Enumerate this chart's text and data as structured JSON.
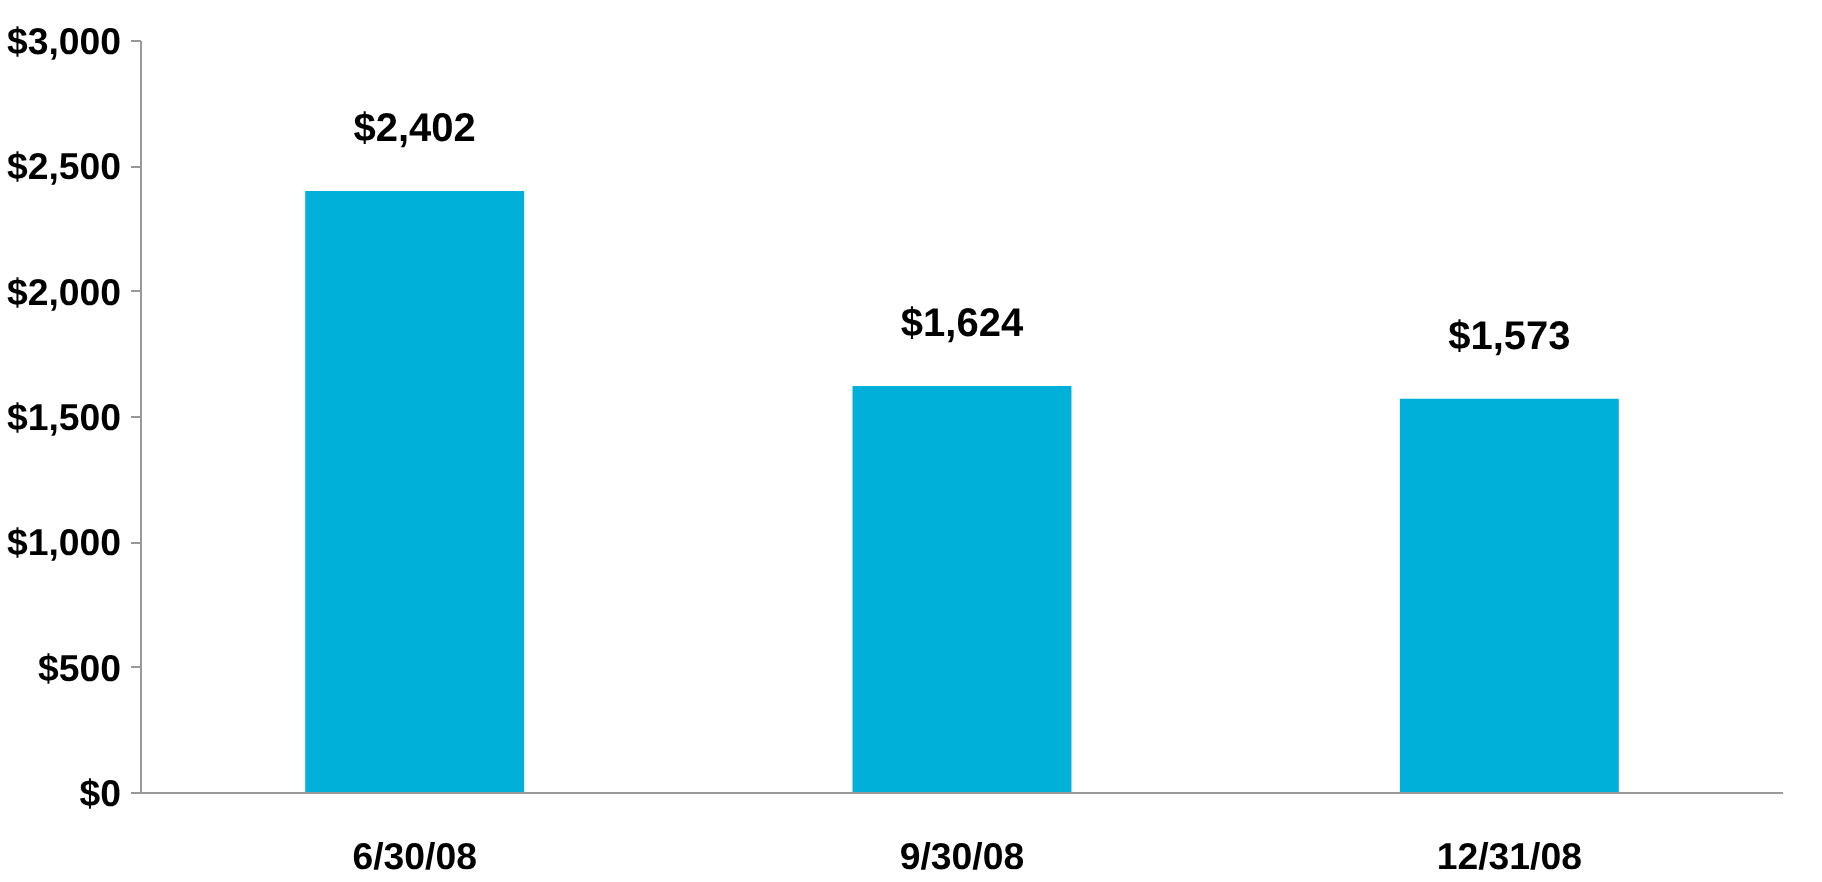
{
  "chart_data": {
    "type": "bar",
    "categories": [
      "6/30/08",
      "9/30/08",
      "12/31/08"
    ],
    "values": [
      2402,
      1624,
      1573
    ],
    "value_labels": [
      "$2,402",
      "$1,624",
      "$1,573"
    ],
    "color": "#00b0d8",
    "ylim": [
      0,
      3000
    ],
    "yticks": [
      {
        "value": 0,
        "label": "$0"
      },
      {
        "value": 500,
        "label": "$500"
      },
      {
        "value": 1000,
        "label": "$1,000"
      },
      {
        "value": 1500,
        "label": "$1,500"
      },
      {
        "value": 2000,
        "label": "$2,000"
      },
      {
        "value": 2500,
        "label": "$2,500"
      },
      {
        "value": 3000,
        "label": "$3,000"
      }
    ],
    "grid": false
  }
}
